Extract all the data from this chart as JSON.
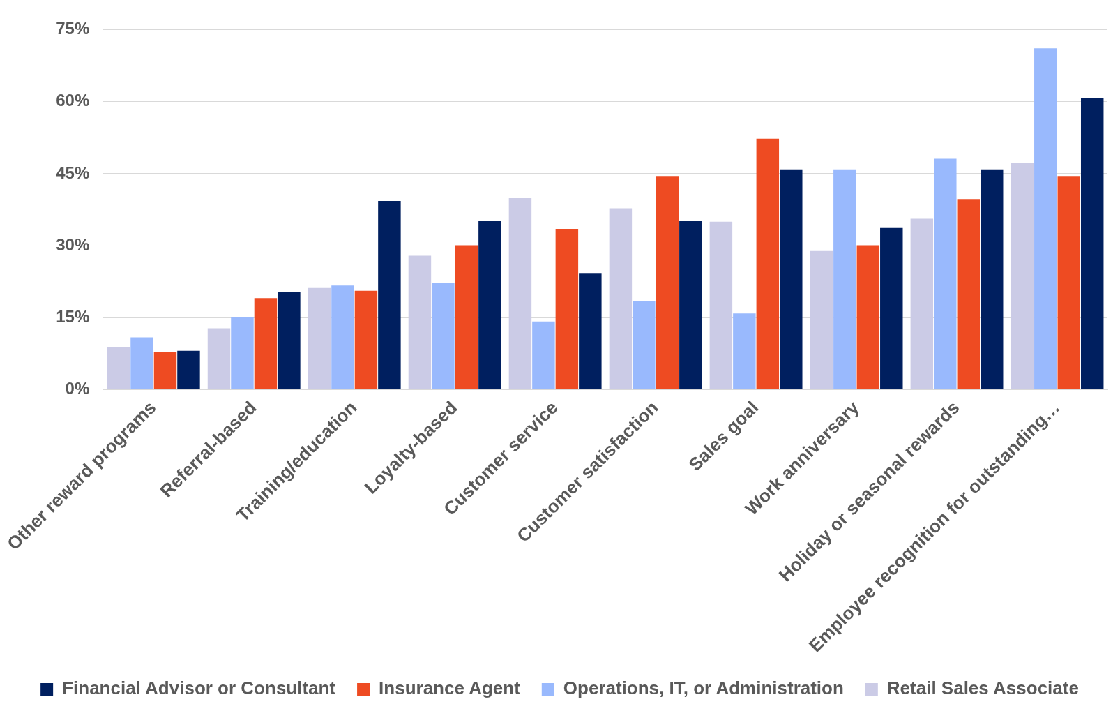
{
  "chart_data": {
    "type": "bar",
    "categories": [
      "Other reward programs",
      "Referral-based",
      "Training/education",
      "Loyalty-based",
      "Customer service",
      "Customer satisfaction",
      "Sales goal",
      "Work anniversary",
      "Holiday or seasonal rewards",
      "Employee recognition for outstanding…"
    ],
    "series": [
      {
        "name": "Retail Sales Associate",
        "color": "#cbcbe6",
        "values": [
          8.9,
          12.8,
          21.2,
          27.9,
          39.9,
          37.8,
          35.0,
          28.9,
          35.6,
          47.3
        ]
      },
      {
        "name": "Operations, IT, or Administration",
        "color": "#99b9fd",
        "values": [
          10.9,
          15.2,
          21.7,
          22.3,
          14.2,
          18.5,
          15.9,
          45.9,
          48.1,
          71.1
        ]
      },
      {
        "name": "Insurance Agent",
        "color": "#ee4b22",
        "values": [
          7.9,
          19.1,
          20.6,
          30.1,
          33.5,
          44.5,
          52.3,
          30.1,
          39.7,
          44.5
        ]
      },
      {
        "name": "Financial Advisor or Consultant",
        "color": "#001f5f",
        "values": [
          8.1,
          20.4,
          39.3,
          35.1,
          24.3,
          35.1,
          45.9,
          33.7,
          45.9,
          60.8
        ]
      }
    ],
    "ylim": [
      0,
      75
    ],
    "yticks": [
      {
        "value": 0,
        "label": "0%"
      },
      {
        "value": 15,
        "label": "15%"
      },
      {
        "value": 30,
        "label": "30%"
      },
      {
        "value": 45,
        "label": "45%"
      },
      {
        "value": 60,
        "label": "60%"
      },
      {
        "value": 75,
        "label": "75%"
      }
    ],
    "grid": "y",
    "legend": "bottom"
  }
}
